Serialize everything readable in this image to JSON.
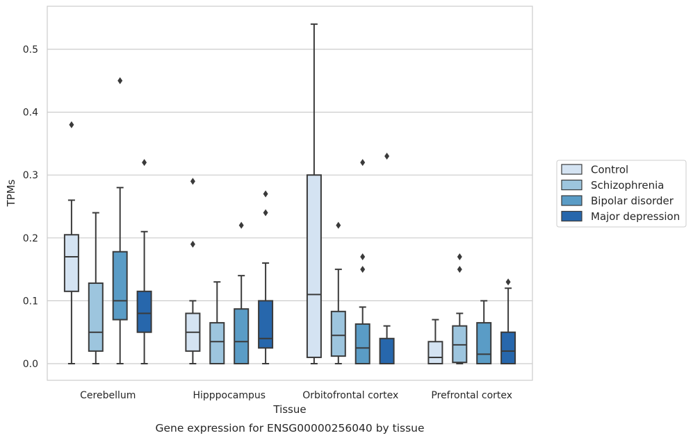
{
  "chart_data": {
    "type": "box",
    "caption": "Gene expression for ENSG00000256040 by tissue",
    "xlabel": "Tissue",
    "ylabel": "TPMs",
    "ylim": [
      -0.026,
      0.572
    ],
    "yticks": [
      0.0,
      0.1,
      0.2,
      0.3,
      0.4,
      0.5
    ],
    "ytick_labels": [
      "0.0",
      "0.1",
      "0.2",
      "0.3",
      "0.4",
      "0.5"
    ],
    "grid": "horizontal",
    "legend_position": "outside-right",
    "categories": [
      "Cerebellum",
      "Hipppocampus",
      "Orbitofrontal cortex",
      "Prefrontal cortex"
    ],
    "series": [
      {
        "name": "Control",
        "color": "#d4e3f2",
        "boxes": [
          {
            "whisker_low": 0.0,
            "q1": 0.115,
            "median": 0.17,
            "q3": 0.205,
            "whisker_high": 0.26,
            "outliers": [
              0.38
            ]
          },
          {
            "whisker_low": 0.0,
            "q1": 0.02,
            "median": 0.05,
            "q3": 0.08,
            "whisker_high": 0.1,
            "outliers": [
              0.19,
              0.29
            ]
          },
          {
            "whisker_low": 0.0,
            "q1": 0.01,
            "median": 0.11,
            "q3": 0.3,
            "whisker_high": 0.54,
            "outliers": []
          },
          {
            "whisker_low": 0.0,
            "q1": 0.0,
            "median": 0.01,
            "q3": 0.035,
            "whisker_high": 0.07,
            "outliers": []
          }
        ]
      },
      {
        "name": "Schizophrenia",
        "color": "#9dc5de",
        "boxes": [
          {
            "whisker_low": 0.0,
            "q1": 0.02,
            "median": 0.05,
            "q3": 0.128,
            "whisker_high": 0.24,
            "outliers": []
          },
          {
            "whisker_low": 0.0,
            "q1": 0.0,
            "median": 0.035,
            "q3": 0.065,
            "whisker_high": 0.13,
            "outliers": []
          },
          {
            "whisker_low": 0.0,
            "q1": 0.012,
            "median": 0.045,
            "q3": 0.083,
            "whisker_high": 0.15,
            "outliers": [
              0.22
            ]
          },
          {
            "whisker_low": 0.0,
            "q1": 0.002,
            "median": 0.03,
            "q3": 0.06,
            "whisker_high": 0.08,
            "outliers": [
              0.15,
              0.17
            ]
          }
        ]
      },
      {
        "name": "Bipolar disorder",
        "color": "#5a9cc6",
        "boxes": [
          {
            "whisker_low": 0.0,
            "q1": 0.07,
            "median": 0.1,
            "q3": 0.178,
            "whisker_high": 0.28,
            "outliers": [
              0.45
            ]
          },
          {
            "whisker_low": 0.0,
            "q1": 0.0,
            "median": 0.035,
            "q3": 0.087,
            "whisker_high": 0.14,
            "outliers": [
              0.22
            ]
          },
          {
            "whisker_low": 0.0,
            "q1": 0.0,
            "median": 0.025,
            "q3": 0.063,
            "whisker_high": 0.09,
            "outliers": [
              0.15,
              0.17,
              0.32
            ]
          },
          {
            "whisker_low": 0.0,
            "q1": 0.0,
            "median": 0.015,
            "q3": 0.065,
            "whisker_high": 0.1,
            "outliers": []
          }
        ]
      },
      {
        "name": "Major depression",
        "color": "#2767ac",
        "boxes": [
          {
            "whisker_low": 0.0,
            "q1": 0.05,
            "median": 0.08,
            "q3": 0.115,
            "whisker_high": 0.21,
            "outliers": [
              0.32
            ]
          },
          {
            "whisker_low": 0.0,
            "q1": 0.025,
            "median": 0.04,
            "q3": 0.1,
            "whisker_high": 0.16,
            "outliers": [
              0.24,
              0.27
            ]
          },
          {
            "whisker_low": 0.0,
            "q1": 0.0,
            "median": 0.0,
            "q3": 0.04,
            "whisker_high": 0.06,
            "outliers": [
              0.33
            ]
          },
          {
            "whisker_low": 0.0,
            "q1": 0.0,
            "median": 0.02,
            "q3": 0.05,
            "whisker_high": 0.12,
            "outliers": [
              0.13
            ]
          }
        ]
      }
    ]
  }
}
